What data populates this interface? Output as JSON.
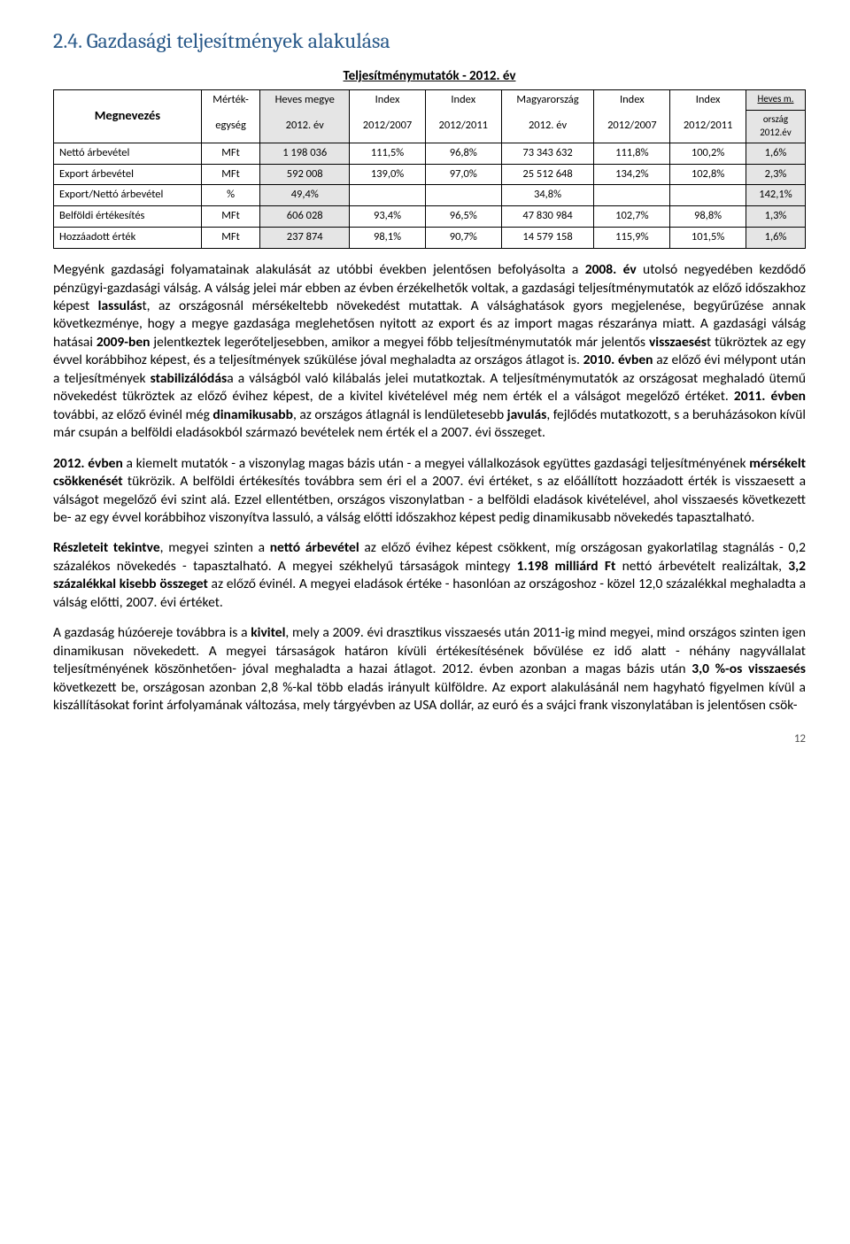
{
  "heading": "2.4.    Gazdasági teljesítmények alakulása",
  "table": {
    "title": "Teljesítménymutatók - 2012. év",
    "head": {
      "megnevezes": "Megnevezés",
      "mertek_top": "Mérték-",
      "mertek_bot": "egység",
      "heves_top": "Heves megye",
      "heves_bot": "2012. év",
      "idx1_top": "Index",
      "idx1_bot": "2012/2007",
      "idx2_top": "Index",
      "idx2_bot": "2012/2011",
      "mo_top": "Magyarország",
      "mo_bot": "2012. év",
      "idx3_top": "Index",
      "idx3_bot": "2012/2007",
      "idx4_top": "Index",
      "idx4_bot": "2012/2011",
      "hm_top": "Heves m.",
      "hm_mid": "ország",
      "hm_bot": "2012.év"
    },
    "rows": [
      {
        "label": "Nettó árbevétel",
        "unit": "MFt",
        "heves": "1 198 036",
        "i1": "111,5%",
        "i2": "96,8%",
        "mo": "73 343 632",
        "i3": "111,8%",
        "i4": "100,2%",
        "hm": "1,6%"
      },
      {
        "label": "Export árbevétel",
        "unit": "MFt",
        "heves": "592 008",
        "i1": "139,0%",
        "i2": "97,0%",
        "mo": "25 512 648",
        "i3": "134,2%",
        "i4": "102,8%",
        "hm": "2,3%"
      },
      {
        "label": "Export/Nettó árbevétel",
        "unit": "%",
        "heves": "49,4%",
        "i1": "",
        "i2": "",
        "mo": "34,8%",
        "i3": "",
        "i4": "",
        "hm": "142,1%"
      },
      {
        "label": "Belföldi értékesítés",
        "unit": "MFt",
        "heves": "606 028",
        "i1": "93,4%",
        "i2": "96,5%",
        "mo": "47 830 984",
        "i3": "102,7%",
        "i4": "98,8%",
        "hm": "1,3%"
      },
      {
        "label": "Hozzáadott érték",
        "unit": "MFt",
        "heves": "237 874",
        "i1": "98,1%",
        "i2": "90,7%",
        "mo": "14 579 158",
        "i3": "115,9%",
        "i4": "101,5%",
        "hm": "1,6%"
      }
    ]
  },
  "paragraphs": {
    "p1": "Megyénk gazdasági folyamatainak alakulását az utóbbi években jelentősen befolyásolta a 2008. év utolsó negyedében kezdődő pénzügyi-gazdasági válság. A válság jelei már ebben az évben érzékelhetők voltak, a gazdasági teljesítménymutatók az előző időszakhoz képest lassulást, az országosnál mérsékeltebb növekedést mutattak. A válsághatások gyors megjelenése, begyűrűzése annak következménye, hogy a megye gazdasága meglehetősen nyitott az export és az import magas részaránya miatt. A gazdasági válság hatásai 2009-ben jelentkeztek legerőteljesebben, amikor a megyei főbb teljesítménymutatók már jelentős visszaesést tükröztek az egy évvel korábbihoz képest, és a teljesítmények szűkülése jóval meghaladta az országos átlagot is. 2010. évben az előző évi mélypont után a teljesítmények stabilizálódása a válságból való kilábalás jelei mutatkoztak. A teljesítménymutatók az országosat meghaladó ütemű növekedést tükröztek az előző évihez képest, de a kivitel kivételével még nem érték el a válságot megelőző értéket. 2011. évben további, az előző évinél még dinamikusabb, az országos átlagnál is lendületesebb javulás, fejlődés mutatkozott, s a beruházásokon kívül már csupán a belföldi eladásokból származó bevételek nem érték el a 2007. évi összeget.",
    "p2": "2012. évben a kiemelt mutatók - a viszonylag magas bázis után - a megyei vállalkozások együttes gazdasági teljesítményének mérsékelt csökkenését tükrözik. A belföldi értékesítés továbbra sem éri el a 2007. évi értéket, s az előállított hozzáadott érték is visszaesett a válságot megelőző évi szint alá. Ezzel ellentétben, országos viszonylatban - a belföldi eladások kivételével, ahol visszaesés következett be- az egy évvel korábbihoz viszonyítva lassuló, a válság előtti időszakhoz képest pedig dinamikusabb növekedés tapasztalható.",
    "p3": "Részleteit tekintve, megyei szinten a nettó árbevétel az előző évihez képest csökkent, míg országosan gyakorlatilag stagnálás - 0,2 százalékos növekedés - tapasztalható. A megyei székhelyű társaságok mintegy 1.198 milliárd Ft nettó árbevételt realizáltak, 3,2 százalékkal kisebb összeget az előző évinél.  A megyei eladások értéke - hasonlóan az országoshoz - közel 12,0 százalékkal meghaladta a válság előtti, 2007. évi értéket.",
    "p4": "A gazdaság húzóereje továbbra is a kivitel, mely a 2009. évi drasztikus visszaesés után 2011-ig mind megyei, mind országos szinten igen dinamikusan növekedett. A megyei társaságok határon kívüli értékesítésének bővülése ez idő alatt - néhány nagyvállalat teljesítményének köszönhetően- jóval meghaladta a hazai átlagot. 2012. évben azonban a magas bázis után 3,0 %-os visszaesés következett be, országosan azonban 2,8 %-kal több eladás irányult külföldre. Az export alakulásánál nem hagyható figyelmen kívül a kiszállításokat forint árfolyamának változása, mely tárgyévben az USA dollár, az euró és a svájci frank viszonylatában is jelentősen csök-"
  },
  "pageNumber": "12",
  "colors": {
    "heading": "#2a5a8a",
    "shade": "#e5e5e5",
    "text": "#000000",
    "bg": "#ffffff"
  }
}
